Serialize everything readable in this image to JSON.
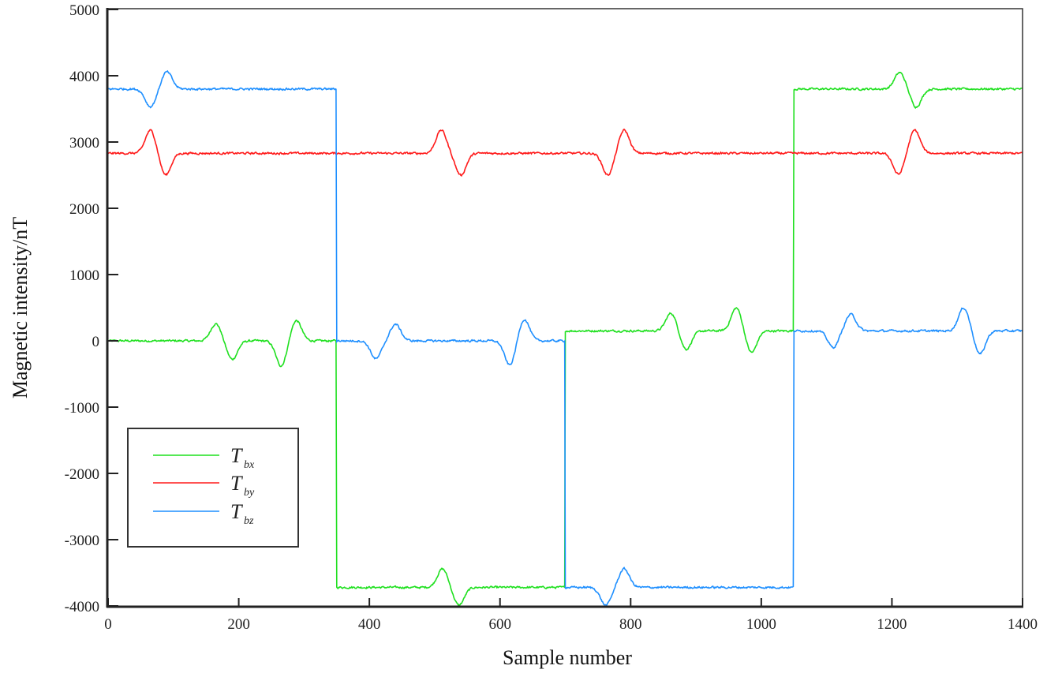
{
  "chart_data": {
    "type": "line",
    "title": "",
    "xlabel": "Sample number",
    "ylabel": "Magnetic intensity/nT",
    "xlim": [
      0,
      1400
    ],
    "ylim": [
      -4000,
      5000
    ],
    "xticks": [
      "0",
      "200",
      "400",
      "600",
      "800",
      "1000",
      "1200",
      "1400"
    ],
    "yticks": [
      "5000",
      "4000",
      "3000",
      "2000",
      "1000",
      "0",
      "-1000",
      "-2000",
      "-3000",
      "-4000"
    ],
    "grid": false,
    "legend_position": "lower-left",
    "noise_amplitude_nT": 25,
    "series": [
      {
        "name": "Tbx",
        "label_main": "T",
        "label_sub": "bx",
        "color": "#1fe01f",
        "segments": [
          [
            0,
            350,
            0
          ],
          [
            350,
            700,
            -3720
          ],
          [
            700,
            1050,
            150
          ],
          [
            1050,
            1400,
            3800
          ]
        ],
        "anomalies": [
          [
            165,
            260
          ],
          [
            190,
            -280
          ],
          [
            265,
            -380
          ],
          [
            288,
            310
          ],
          [
            512,
            280
          ],
          [
            537,
            -270
          ],
          [
            862,
            270
          ],
          [
            885,
            -280
          ],
          [
            962,
            350
          ],
          [
            985,
            -330
          ],
          [
            1212,
            250
          ],
          [
            1237,
            -270
          ]
        ]
      },
      {
        "name": "Tby",
        "label_main": "T",
        "label_sub": "by",
        "color": "#ff1a1a",
        "segments": [
          [
            0,
            1400,
            2830
          ]
        ],
        "anomalies": [
          [
            65,
            350
          ],
          [
            88,
            -330
          ],
          [
            510,
            350
          ],
          [
            540,
            -330
          ],
          [
            765,
            -330
          ],
          [
            790,
            350
          ],
          [
            1210,
            -320
          ],
          [
            1235,
            350
          ]
        ]
      },
      {
        "name": "Tbz",
        "label_main": "T",
        "label_sub": "bz",
        "color": "#1e8fff",
        "segments": [
          [
            0,
            350,
            3800
          ],
          [
            350,
            700,
            0
          ],
          [
            700,
            1050,
            -3720
          ],
          [
            1050,
            1400,
            150
          ]
        ],
        "anomalies": [
          [
            65,
            -270
          ],
          [
            90,
            260
          ],
          [
            410,
            -270
          ],
          [
            440,
            250
          ],
          [
            615,
            -370
          ],
          [
            637,
            330
          ],
          [
            762,
            -270
          ],
          [
            790,
            280
          ],
          [
            1110,
            -250
          ],
          [
            1137,
            250
          ],
          [
            1310,
            350
          ],
          [
            1335,
            -350
          ]
        ]
      }
    ]
  }
}
